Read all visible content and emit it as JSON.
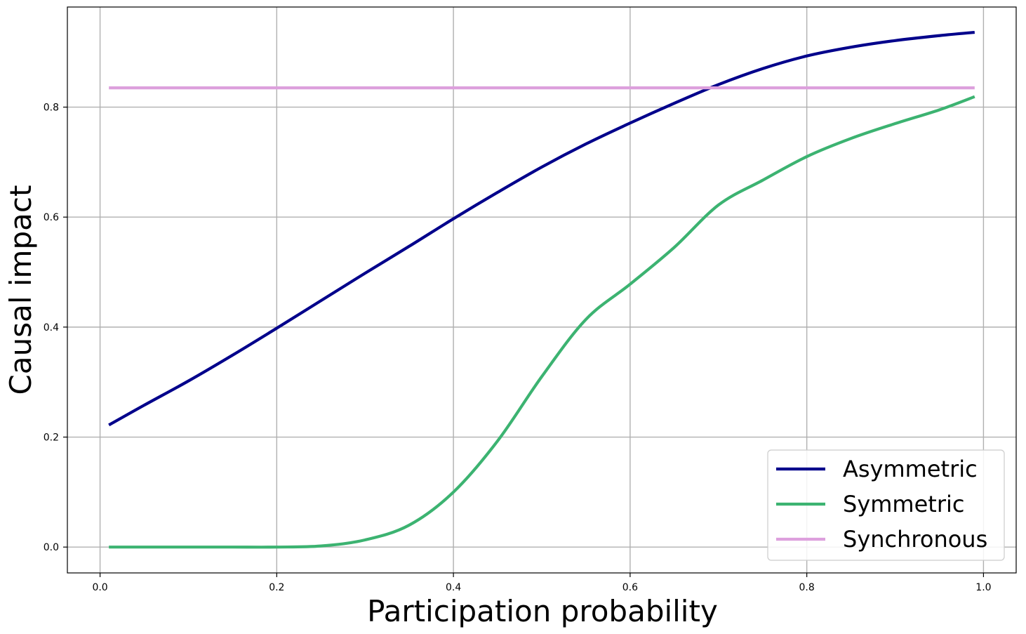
{
  "chart_data": {
    "type": "line",
    "title": "",
    "xlabel": "Participation probability",
    "ylabel": "Causal impact",
    "xlim": [
      -0.037,
      1.037
    ],
    "ylim": [
      -0.047,
      0.982
    ],
    "x_ticks": [
      {
        "value": 0.0,
        "label": "0.0"
      },
      {
        "value": 0.2,
        "label": "0.2"
      },
      {
        "value": 0.4,
        "label": "0.4"
      },
      {
        "value": 0.6,
        "label": "0.6"
      },
      {
        "value": 0.8,
        "label": "0.8"
      },
      {
        "value": 1.0,
        "label": "1.0"
      }
    ],
    "y_ticks": [
      {
        "value": 0.0,
        "label": "0.0"
      },
      {
        "value": 0.2,
        "label": "0.2"
      },
      {
        "value": 0.4,
        "label": "0.4"
      },
      {
        "value": 0.6,
        "label": "0.6"
      },
      {
        "value": 0.8,
        "label": "0.8"
      }
    ],
    "grid": true,
    "legend_position": "lower-right",
    "x": [
      0.01,
      0.05,
      0.1,
      0.15,
      0.2,
      0.25,
      0.3,
      0.35,
      0.4,
      0.45,
      0.5,
      0.55,
      0.6,
      0.65,
      0.7,
      0.75,
      0.8,
      0.85,
      0.9,
      0.95,
      0.99
    ],
    "series": [
      {
        "name": "Asymmetric",
        "color": "#00008b",
        "values": [
          0.222,
          0.258,
          0.302,
          0.349,
          0.398,
          0.448,
          0.498,
          0.547,
          0.597,
          0.645,
          0.691,
          0.733,
          0.771,
          0.807,
          0.841,
          0.87,
          0.893,
          0.909,
          0.921,
          0.93,
          0.936
        ]
      },
      {
        "name": "Symmetric",
        "color": "#3cb371",
        "values": [
          0.0,
          0.0,
          0.0,
          0.0,
          0.0,
          0.002,
          0.013,
          0.04,
          0.1,
          0.193,
          0.31,
          0.414,
          0.478,
          0.545,
          0.622,
          0.667,
          0.71,
          0.743,
          0.77,
          0.795,
          0.819
        ]
      },
      {
        "name": "Synchronous",
        "color": "#dda0dd",
        "values": [
          0.835,
          0.835,
          0.835,
          0.835,
          0.835,
          0.835,
          0.835,
          0.835,
          0.835,
          0.835,
          0.835,
          0.835,
          0.835,
          0.835,
          0.835,
          0.835,
          0.835,
          0.835,
          0.835,
          0.835,
          0.835
        ]
      }
    ]
  }
}
